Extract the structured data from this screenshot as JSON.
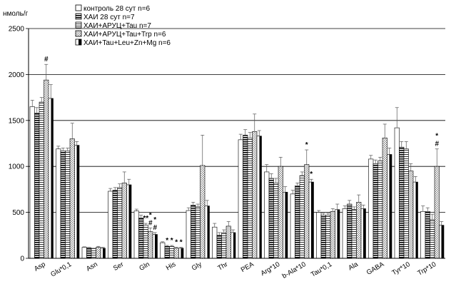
{
  "chart_data": {
    "type": "bar",
    "ylabel": "нмоль/г",
    "ylim": [
      0,
      2500
    ],
    "yticks": [
      0,
      500,
      1000,
      1500,
      2000,
      2500
    ],
    "grid": "horizontal",
    "legend_position": "top",
    "categories": [
      "Asp",
      "Glu*0,1",
      "Asn",
      "Ser",
      "Gln",
      "His",
      "Gly",
      "Thr",
      "PEA",
      "Arg*10",
      "b-Ala*10",
      "Tau*0,1",
      "Ala",
      "GABA",
      "Tyr*10",
      "Trp*10"
    ],
    "series": [
      {
        "name": "контроль 28 сут n=6",
        "pattern": "white",
        "values": [
          1650,
          1190,
          120,
          730,
          515,
          170,
          520,
          340,
          1290,
          940,
          700,
          500,
          540,
          1080,
          1420,
          510
        ],
        "errors": [
          70,
          30,
          5,
          30,
          20,
          10,
          30,
          40,
          60,
          80,
          40,
          20,
          30,
          40,
          220,
          60
        ]
      },
      {
        "name": "ХАИ 28 сут n=7",
        "pattern": "hstripe",
        "values": [
          1580,
          1170,
          115,
          740,
          440,
          130,
          580,
          250,
          1340,
          870,
          790,
          470,
          590,
          1030,
          1210,
          510
        ],
        "errors": [
          60,
          30,
          5,
          30,
          30,
          10,
          30,
          30,
          60,
          50,
          30,
          20,
          40,
          40,
          60,
          40
        ]
      },
      {
        "name": "ХАИ+АРУЦ+Tau n=7",
        "pattern": "hstripe-light",
        "values": [
          1700,
          1170,
          105,
          770,
          360,
          130,
          560,
          280,
          1310,
          820,
          900,
          470,
          530,
          1060,
          1190,
          420
        ],
        "errors": [
          50,
          30,
          5,
          40,
          20,
          10,
          30,
          30,
          60,
          50,
          40,
          20,
          30,
          40,
          80,
          60
        ]
      },
      {
        "name": "ХАИ+АРУЦ+Tau+Trp n=6",
        "pattern": "hatch",
        "values": [
          1940,
          1300,
          120,
          820,
          290,
          110,
          1010,
          350,
          1380,
          1000,
          1020,
          510,
          610,
          1310,
          950,
          1000
        ],
        "errors": [
          170,
          170,
          10,
          120,
          40,
          10,
          330,
          50,
          190,
          100,
          160,
          30,
          80,
          150,
          80,
          190
        ]
      },
      {
        "name": "ХАИ+Tau+Leu+Zn+Mg n=6",
        "pattern": "half",
        "values": [
          1740,
          1230,
          110,
          800,
          260,
          110,
          570,
          280,
          1330,
          720,
          830,
          530,
          540,
          1130,
          830,
          360
        ],
        "errors": [
          150,
          40,
          10,
          60,
          20,
          10,
          60,
          30,
          60,
          60,
          30,
          60,
          40,
          70,
          60,
          40
        ]
      }
    ],
    "annotations": [
      {
        "category": "Asp",
        "series": 3,
        "text": "#"
      },
      {
        "category": "Gln",
        "series": 2,
        "text": "**"
      },
      {
        "category": "Gln",
        "series": 3,
        "text": "#"
      },
      {
        "category": "Gln",
        "series": 3,
        "text": "*"
      },
      {
        "category": "Gln",
        "series": 4,
        "text": "#"
      },
      {
        "category": "Gln",
        "series": 4,
        "text": "*"
      },
      {
        "category": "His",
        "series": 1,
        "text": "*"
      },
      {
        "category": "His",
        "series": 2,
        "text": "*"
      },
      {
        "category": "His",
        "series": 3,
        "text": "*"
      },
      {
        "category": "His",
        "series": 4,
        "text": "*"
      },
      {
        "category": "b-Ala*10",
        "series": 3,
        "text": "*"
      },
      {
        "category": "b-Ala*10",
        "series": 4,
        "text": "*"
      },
      {
        "category": "Trp*10",
        "series": 3,
        "text": "#"
      },
      {
        "category": "Trp*10",
        "series": 3,
        "text": "*"
      }
    ]
  }
}
